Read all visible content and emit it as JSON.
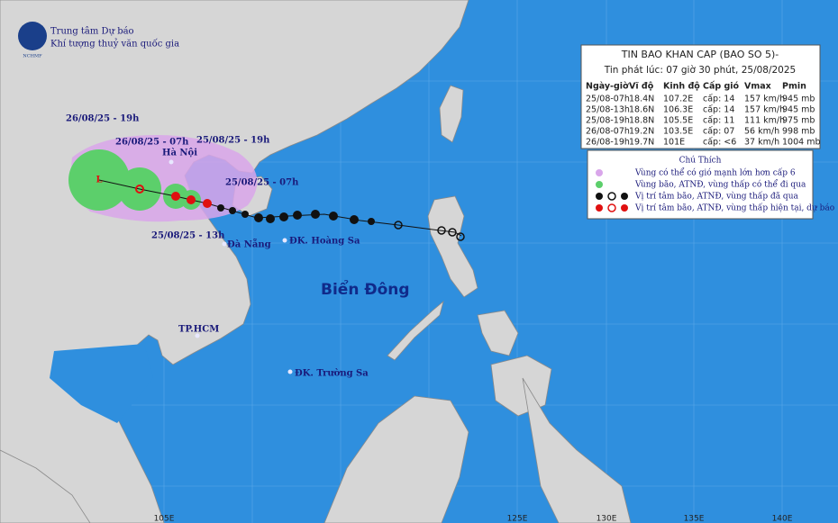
{
  "header": {
    "org_line1": "Trung tâm Dự báo",
    "org_line2": "Khí tượng thuỷ văn quốc gia",
    "logo": "NCHMF"
  },
  "bulletin": {
    "title": "TIN BAO KHAN CAP (BAO SO 5)-",
    "issued": "Tin phát lúc: 07 giờ 30 phút, 25/08/2025",
    "columns": [
      "Ngày-giờ",
      "Vĩ độ",
      "Kinh độ",
      "Cấp gió",
      "Vmax",
      "Pmin"
    ],
    "rows": [
      [
        "25/08-07h",
        "18.4N",
        "107.2E",
        "cấp: 14",
        "157 km/h",
        "945 mb"
      ],
      [
        "25/08-13h",
        "18.6N",
        "106.3E",
        "cấp: 14",
        "157 km/h",
        "945 mb"
      ],
      [
        "25/08-19h",
        "18.8N",
        "105.5E",
        "cấp: 11",
        "111 km/h",
        "975 mb"
      ],
      [
        "26/08-07h",
        "19.2N",
        "103.5E",
        "cấp: 07",
        "56 km/h",
        "998 mb"
      ],
      [
        "26/08-19h",
        "19.7N",
        "101E",
        "cấp: <6",
        "37 km/h",
        "1004 mb"
      ]
    ]
  },
  "legend": {
    "title": "Chú Thích",
    "items": [
      "Vùng có thể có gió mạnh lớn hơn cấp 6",
      "Vùng bão, ATNĐ, vùng thấp có thể đi qua",
      "Vị trí tâm bão, ATNĐ, vùng thấp đã qua",
      "Vị trí tâm bão, ATNĐ, vùng thấp hiện tại, dự báo"
    ]
  },
  "map_labels": {
    "forecast_26_19": "26/08/25 - 19h",
    "forecast_26_07": "26/08/25 - 07h",
    "forecast_25_19": "25/08/25 - 19h",
    "forecast_25_07": "25/08/25 - 07h",
    "forecast_25_13": "25/08/25 - 13h",
    "hanoi": "Hà Nội",
    "danang": "Đà Nẵng",
    "hoangsa": "ĐK. Hoàng Sa",
    "sea": "Biển Đông",
    "hcm": "TP.HCM",
    "truongsa": "ĐK. Trường Sa"
  },
  "longitude_labels": [
    "105E",
    "125E",
    "130E",
    "135E",
    "140E"
  ]
}
